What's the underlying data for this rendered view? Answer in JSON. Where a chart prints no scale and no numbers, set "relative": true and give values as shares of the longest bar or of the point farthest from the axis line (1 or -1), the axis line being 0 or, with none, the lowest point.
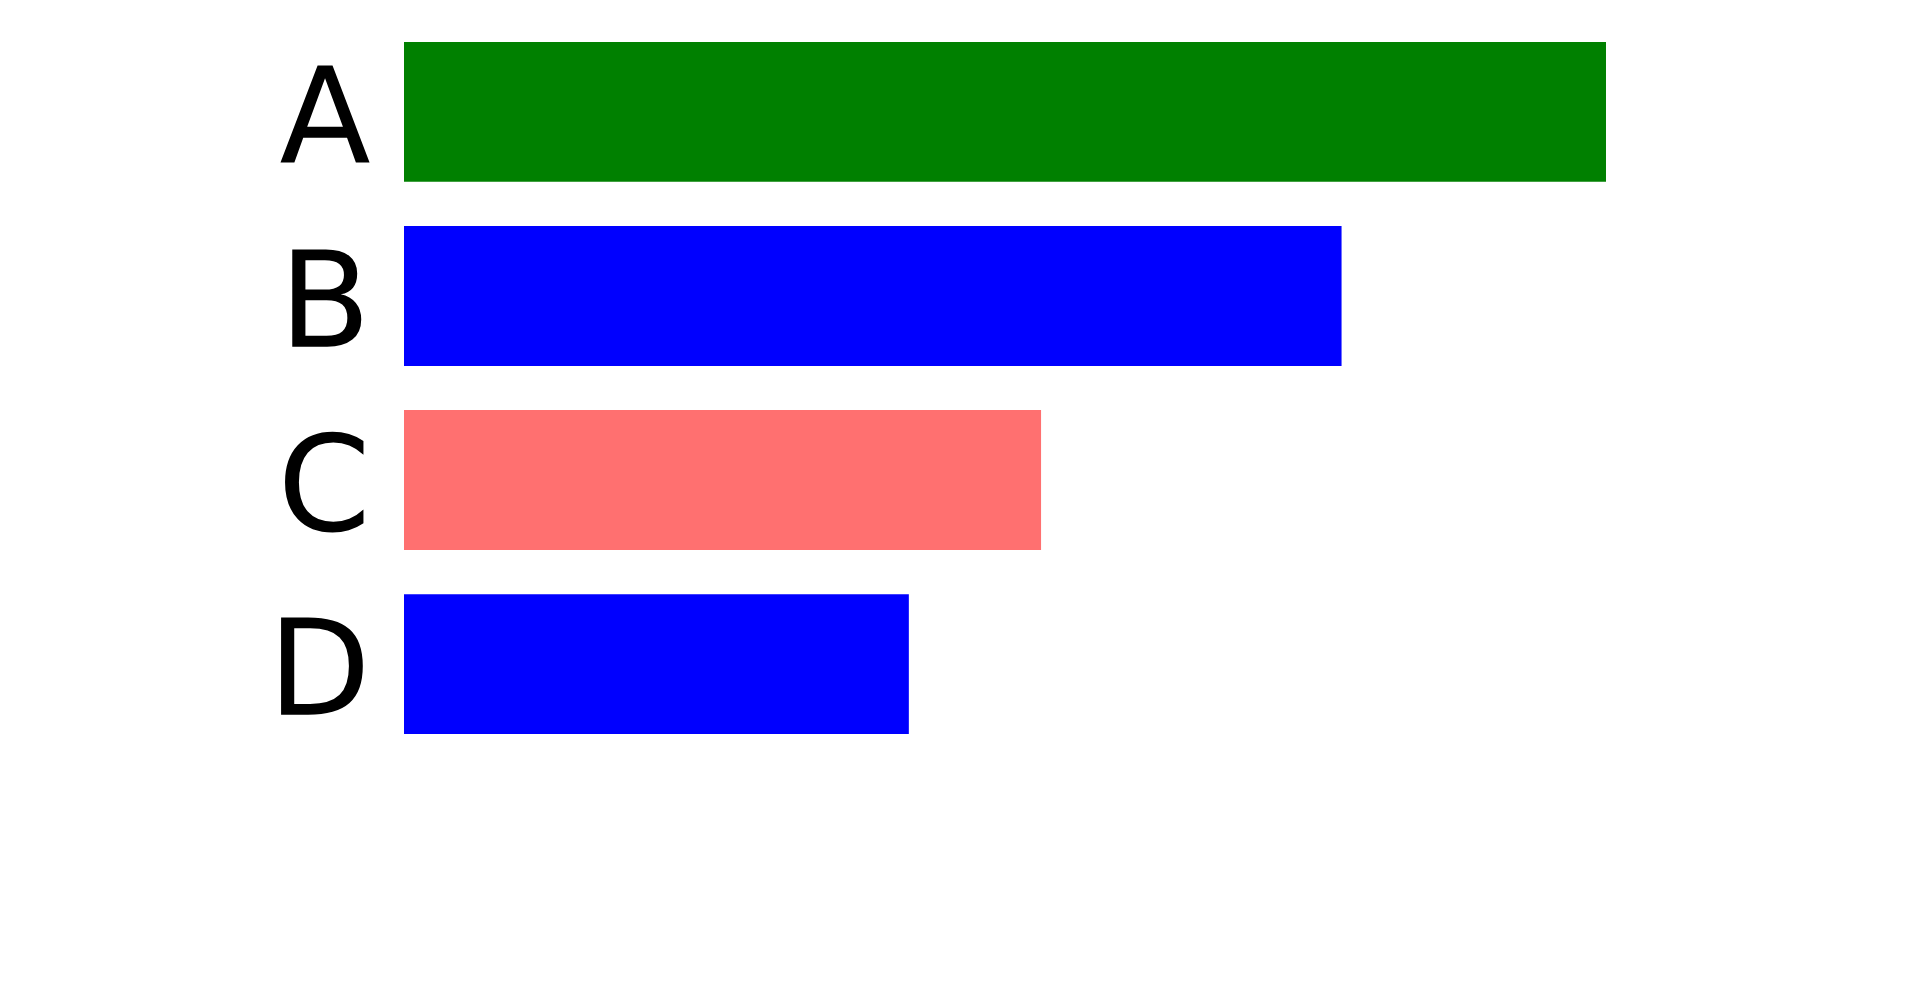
{
  "chart_data": {
    "type": "bar",
    "orientation": "horizontal",
    "relative": true,
    "categories": [
      "A",
      "B",
      "C",
      "D"
    ],
    "values": [
      1,
      0.78,
      0.53,
      0.42
    ],
    "colors": [
      "#008000",
      "#0000ff",
      "#ff7070",
      "#0000ff"
    ]
  }
}
